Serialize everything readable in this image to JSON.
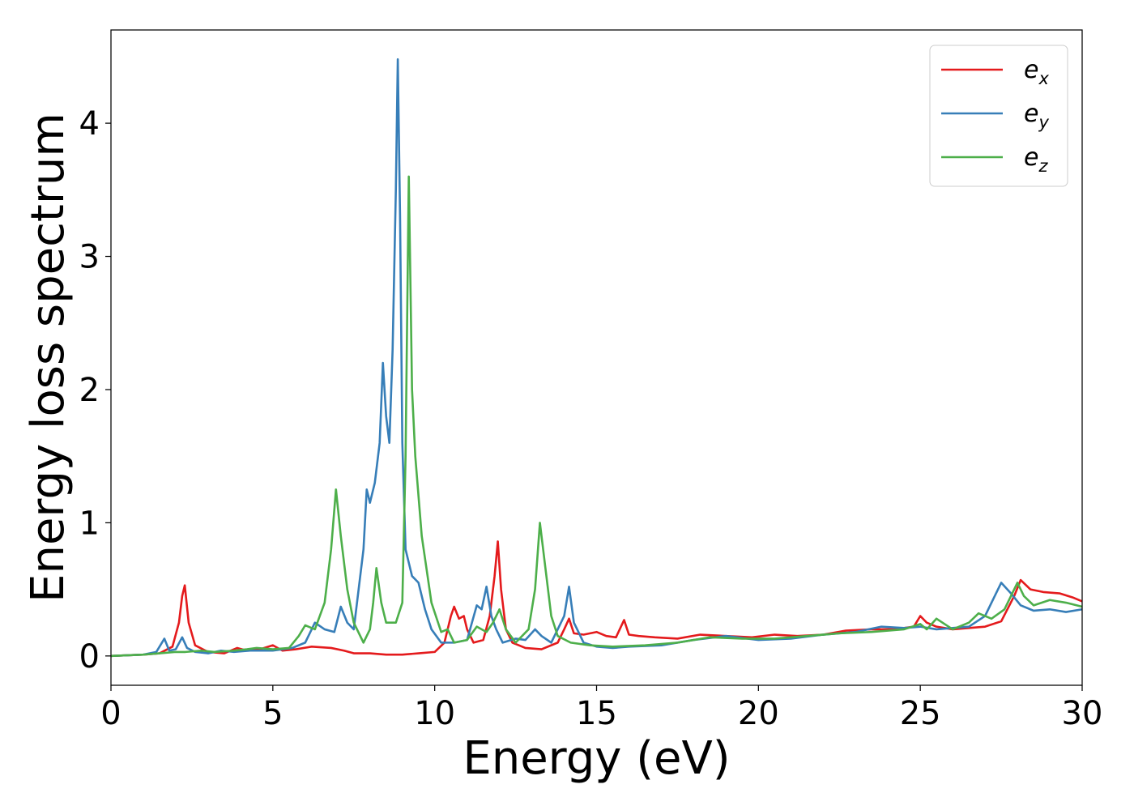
{
  "chart_data": {
    "type": "line",
    "title": "",
    "xlabel": "Energy (eV)",
    "ylabel": "Energy loss spectrum",
    "xlim": [
      0,
      30
    ],
    "ylim": [
      -0.22,
      4.7
    ],
    "xticks": [
      0,
      5,
      10,
      15,
      20,
      25,
      30
    ],
    "yticks": [
      0,
      1,
      2,
      3,
      4
    ],
    "grid": false,
    "legend_position": "top-right",
    "series": [
      {
        "name": "e_x",
        "label_main": "e",
        "label_sub": "x",
        "color": "#e41a1c",
        "x": [
          0,
          1,
          1.5,
          1.9,
          2.1,
          2.2,
          2.28,
          2.4,
          2.6,
          3.0,
          3.5,
          3.9,
          4.2,
          4.6,
          5.0,
          5.3,
          5.7,
          6.2,
          6.8,
          7.2,
          7.5,
          8.0,
          8.5,
          9.0,
          9.5,
          10.0,
          10.3,
          10.5,
          10.6,
          10.75,
          10.9,
          11.0,
          11.2,
          11.5,
          11.7,
          11.85,
          11.95,
          12.05,
          12.2,
          12.4,
          12.8,
          13.3,
          13.8,
          14.0,
          14.15,
          14.3,
          14.6,
          15.0,
          15.3,
          15.6,
          15.85,
          16.0,
          16.3,
          16.8,
          17.5,
          18.2,
          19.0,
          19.8,
          20.5,
          21.2,
          22.0,
          22.7,
          23.5,
          24.2,
          24.8,
          25.0,
          25.2,
          25.5,
          26.0,
          26.5,
          27.0,
          27.5,
          27.9,
          28.1,
          28.4,
          28.8,
          29.3,
          29.7,
          30.0
        ],
        "y": [
          0,
          0.01,
          0.02,
          0.07,
          0.25,
          0.45,
          0.53,
          0.25,
          0.08,
          0.03,
          0.02,
          0.06,
          0.04,
          0.05,
          0.08,
          0.04,
          0.05,
          0.07,
          0.06,
          0.04,
          0.02,
          0.02,
          0.01,
          0.01,
          0.02,
          0.03,
          0.1,
          0.3,
          0.37,
          0.28,
          0.3,
          0.2,
          0.1,
          0.12,
          0.3,
          0.6,
          0.86,
          0.5,
          0.2,
          0.1,
          0.06,
          0.05,
          0.1,
          0.2,
          0.28,
          0.17,
          0.16,
          0.18,
          0.15,
          0.14,
          0.27,
          0.16,
          0.15,
          0.14,
          0.13,
          0.16,
          0.15,
          0.14,
          0.16,
          0.15,
          0.16,
          0.19,
          0.2,
          0.2,
          0.22,
          0.3,
          0.25,
          0.22,
          0.2,
          0.21,
          0.22,
          0.26,
          0.45,
          0.57,
          0.5,
          0.48,
          0.47,
          0.44,
          0.41
        ]
      },
      {
        "name": "e_y",
        "label_main": "e",
        "label_sub": "y",
        "color": "#377eb8",
        "x": [
          0,
          1,
          1.4,
          1.65,
          1.8,
          2.0,
          2.2,
          2.35,
          2.6,
          3.0,
          3.4,
          3.8,
          4.3,
          5.0,
          5.6,
          6.0,
          6.3,
          6.6,
          6.9,
          7.1,
          7.3,
          7.5,
          7.8,
          7.9,
          8.0,
          8.15,
          8.3,
          8.4,
          8.5,
          8.6,
          8.7,
          8.8,
          8.86,
          8.93,
          9.0,
          9.1,
          9.3,
          9.5,
          9.7,
          9.9,
          10.2,
          10.6,
          11.0,
          11.3,
          11.45,
          11.6,
          11.75,
          11.9,
          12.1,
          12.5,
          12.8,
          13.1,
          13.3,
          13.6,
          14.0,
          14.15,
          14.3,
          14.6,
          15.0,
          15.5,
          16.0,
          17.0,
          18.0,
          19.0,
          20.0,
          21.0,
          22.0,
          23.0,
          23.8,
          24.5,
          25.0,
          25.5,
          26.0,
          26.5,
          27.0,
          27.3,
          27.5,
          27.8,
          28.1,
          28.5,
          29.0,
          29.5,
          30.0
        ],
        "y": [
          0,
          0.01,
          0.03,
          0.13,
          0.04,
          0.05,
          0.14,
          0.06,
          0.03,
          0.02,
          0.04,
          0.03,
          0.04,
          0.04,
          0.06,
          0.1,
          0.25,
          0.2,
          0.18,
          0.37,
          0.25,
          0.2,
          0.8,
          1.25,
          1.15,
          1.3,
          1.6,
          2.2,
          1.8,
          1.6,
          2.3,
          3.5,
          4.48,
          3.3,
          1.6,
          0.8,
          0.6,
          0.55,
          0.35,
          0.2,
          0.1,
          0.1,
          0.12,
          0.38,
          0.35,
          0.52,
          0.3,
          0.2,
          0.1,
          0.13,
          0.12,
          0.2,
          0.15,
          0.1,
          0.3,
          0.52,
          0.25,
          0.1,
          0.07,
          0.06,
          0.07,
          0.08,
          0.12,
          0.15,
          0.12,
          0.13,
          0.16,
          0.18,
          0.22,
          0.21,
          0.22,
          0.2,
          0.21,
          0.22,
          0.3,
          0.45,
          0.55,
          0.47,
          0.38,
          0.34,
          0.35,
          0.33,
          0.35
        ]
      },
      {
        "name": "e_z",
        "label_main": "e",
        "label_sub": "z",
        "color": "#4daf4a",
        "x": [
          0,
          1,
          1.5,
          2.0,
          2.3,
          2.8,
          3.2,
          3.8,
          4.2,
          4.5,
          5.0,
          5.5,
          5.8,
          6.0,
          6.3,
          6.6,
          6.8,
          6.95,
          7.1,
          7.3,
          7.5,
          7.8,
          8.0,
          8.1,
          8.2,
          8.35,
          8.5,
          8.8,
          9.0,
          9.1,
          9.2,
          9.3,
          9.4,
          9.6,
          9.9,
          10.2,
          10.4,
          10.6,
          11.0,
          11.3,
          11.6,
          11.8,
          12.0,
          12.2,
          12.5,
          12.9,
          13.1,
          13.25,
          13.4,
          13.6,
          13.8,
          14.2,
          14.8,
          15.5,
          16.5,
          17.5,
          18.5,
          19.5,
          20.5,
          21.5,
          22.5,
          23.5,
          24.5,
          25.0,
          25.2,
          25.5,
          26.0,
          26.5,
          26.8,
          27.2,
          27.6,
          28.0,
          28.2,
          28.5,
          29.0,
          29.5,
          30.0
        ],
        "y": [
          0,
          0.01,
          0.02,
          0.03,
          0.03,
          0.04,
          0.03,
          0.04,
          0.05,
          0.06,
          0.05,
          0.06,
          0.15,
          0.23,
          0.2,
          0.4,
          0.8,
          1.25,
          0.9,
          0.5,
          0.25,
          0.1,
          0.2,
          0.4,
          0.66,
          0.4,
          0.25,
          0.25,
          0.4,
          1.5,
          3.6,
          2.0,
          1.5,
          0.9,
          0.4,
          0.18,
          0.2,
          0.1,
          0.12,
          0.22,
          0.18,
          0.25,
          0.35,
          0.2,
          0.1,
          0.2,
          0.5,
          1.0,
          0.7,
          0.3,
          0.15,
          0.1,
          0.08,
          0.07,
          0.08,
          0.1,
          0.14,
          0.13,
          0.13,
          0.15,
          0.17,
          0.18,
          0.2,
          0.24,
          0.2,
          0.28,
          0.2,
          0.25,
          0.32,
          0.28,
          0.35,
          0.55,
          0.45,
          0.38,
          0.42,
          0.4,
          0.37
        ]
      }
    ]
  }
}
